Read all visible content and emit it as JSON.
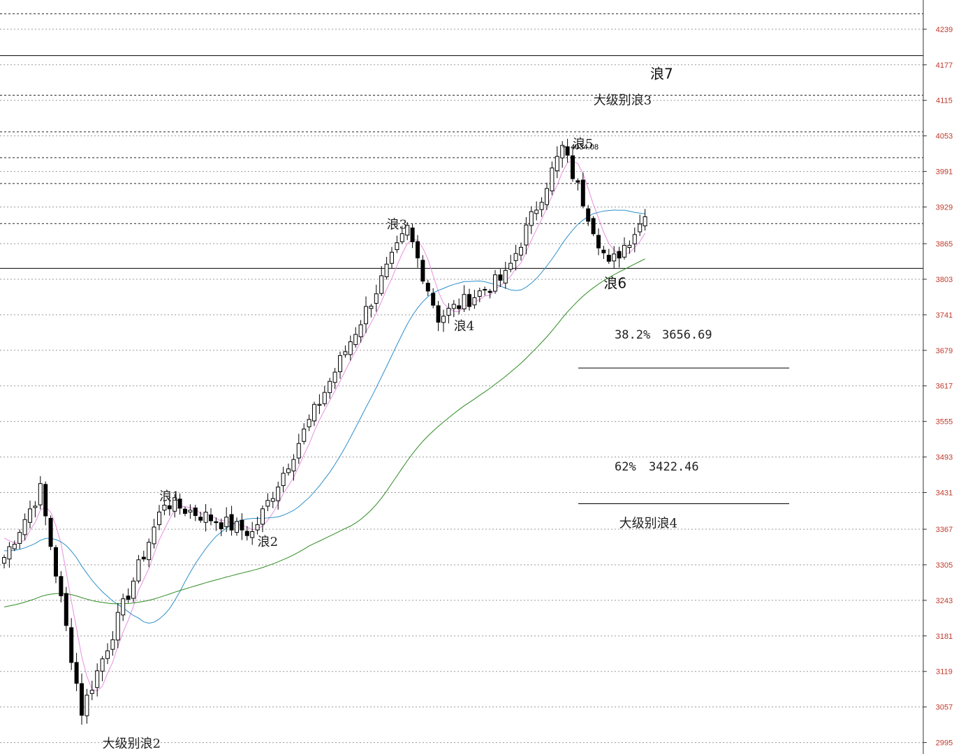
{
  "chart_data": {
    "type": "candlestick",
    "ylim": [
      2975,
      4290
    ],
    "y_ticks": [
      "4239",
      "4177",
      "4115",
      "4053",
      "3991",
      "3929",
      "3865",
      "3803",
      "3741",
      "3679",
      "3617",
      "3555",
      "3493",
      "3431",
      "3367",
      "3305",
      "3243",
      "3181",
      "3119",
      "3057",
      "2995"
    ],
    "peak_label": "4034.08",
    "peak_value": 4034.08,
    "horizontal_levels": {
      "solid": [
        4193,
        3822
      ],
      "dashed": [
        4266,
        4124,
        4060,
        4015,
        3970,
        3900
      ]
    },
    "fib_levels": [
      {
        "label": "38.2%",
        "value_text": "3656.69",
        "value": 3656.69
      },
      {
        "label": "62%",
        "value_text": "3422.46",
        "value": 3422.46
      }
    ],
    "wave_labels": [
      {
        "text": "浪1",
        "price": 3417,
        "bar": 30
      },
      {
        "text": "浪2",
        "price": 3338,
        "bar": 49
      },
      {
        "text": "浪3",
        "price": 3891,
        "bar": 74
      },
      {
        "text": "浪4",
        "price": 3714,
        "bar": 87
      },
      {
        "text": "浪5",
        "price": 4032,
        "bar": 110
      },
      {
        "text": "浪6",
        "price": 3788,
        "bar": 116
      },
      {
        "text": "浪7",
        "price": 4153,
        "bar": 125
      },
      {
        "text": "大级别浪2",
        "price": 2986,
        "bar": 19
      },
      {
        "text": "大级别浪3",
        "price": 4108,
        "bar": 114
      },
      {
        "text": "大级别浪4",
        "price": 3370,
        "bar": 119
      }
    ],
    "key_points": [
      {
        "bar": 0,
        "price": 3318
      },
      {
        "bar": 7,
        "price": 3436
      },
      {
        "bar": 15,
        "price": 3050
      },
      {
        "bar": 31,
        "price": 3415
      },
      {
        "bar": 48,
        "price": 3360
      },
      {
        "bar": 78,
        "price": 3890
      },
      {
        "bar": 84,
        "price": 3736
      },
      {
        "bar": 97,
        "price": 3808
      },
      {
        "bar": 108,
        "price": 4032
      },
      {
        "bar": 117,
        "price": 3825
      },
      {
        "bar": 124,
        "price": 3912
      }
    ],
    "ma_short_color": "#e88fe0",
    "ma_mid_color": "#2f8fc9",
    "ma_long_color": "#2e8b22"
  }
}
